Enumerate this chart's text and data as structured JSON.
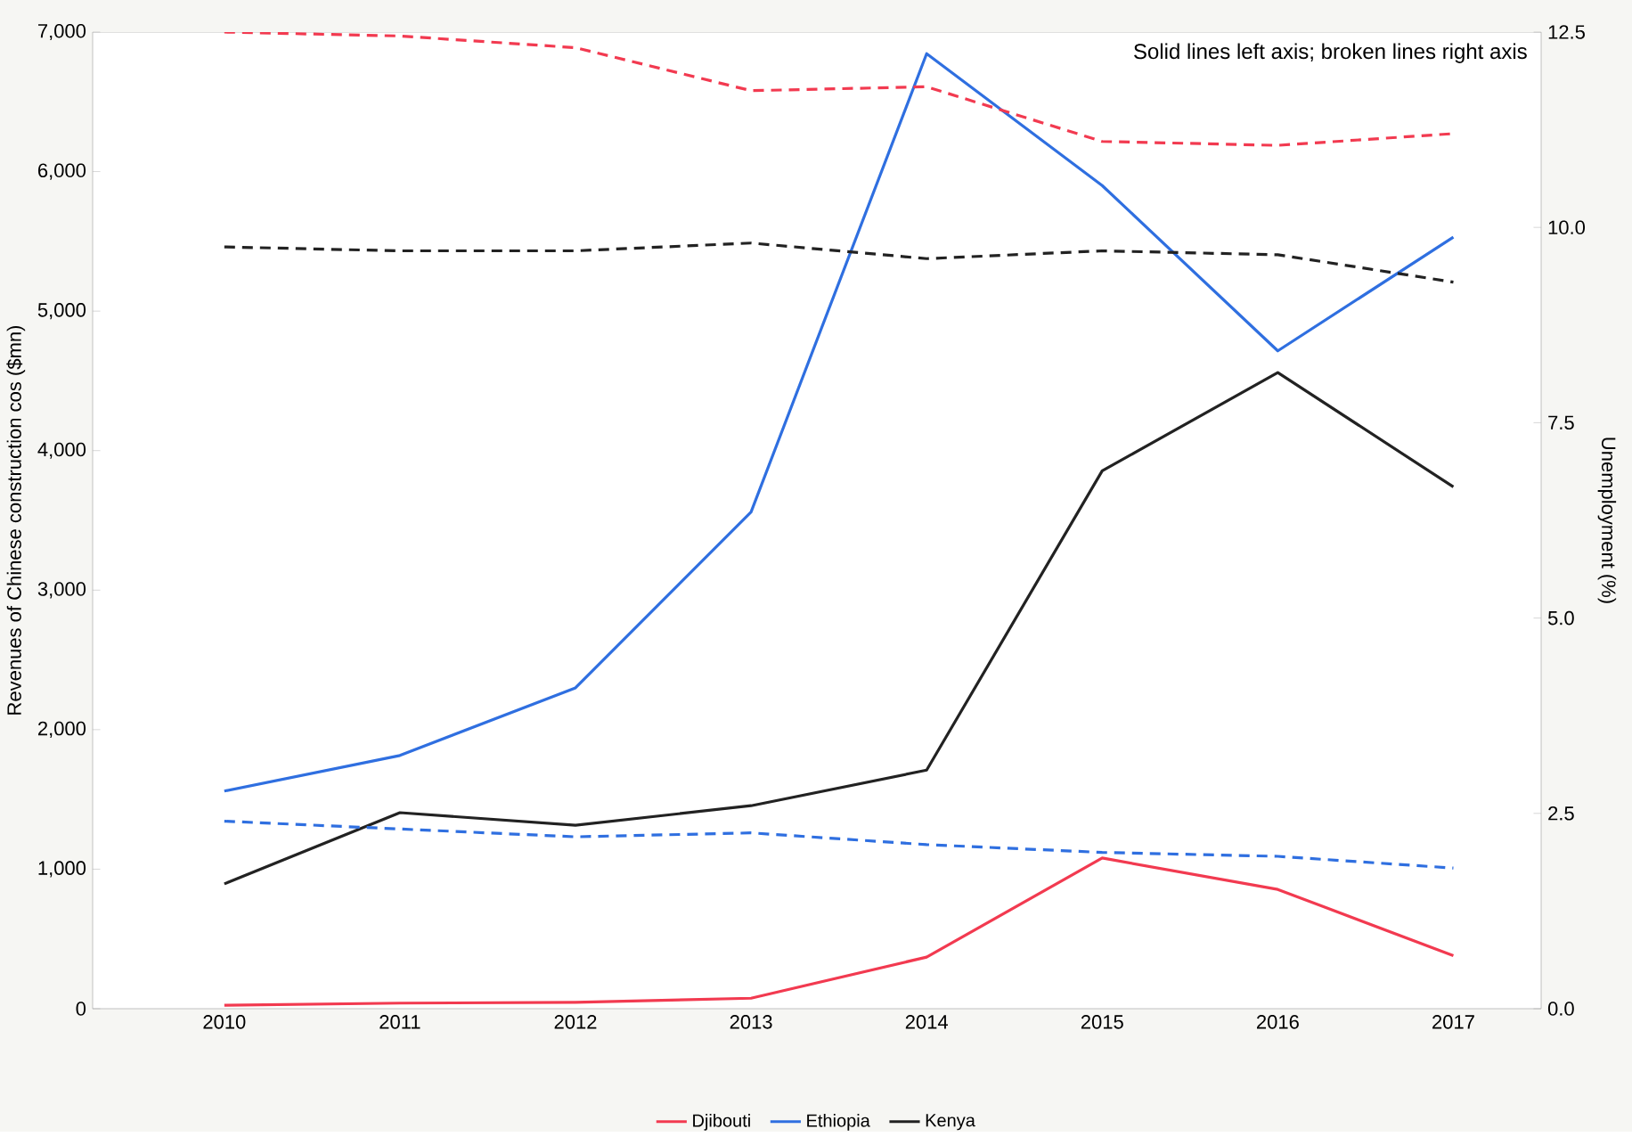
{
  "chart_data": {
    "type": "line",
    "categories": [
      "2010",
      "2011",
      "2012",
      "2013",
      "2014",
      "2015",
      "2016",
      "2017"
    ],
    "ylabel": "Revenues of Chinese construction cos  ($mn)",
    "y2label": "Unemployment (%)",
    "ylim": [
      0,
      7000
    ],
    "yticks": [
      {
        "value": 0,
        "label": "0"
      },
      {
        "value": 1000,
        "label": "1,000"
      },
      {
        "value": 2000,
        "label": "2,000"
      },
      {
        "value": 3000,
        "label": "3,000"
      },
      {
        "value": 4000,
        "label": "4,000"
      },
      {
        "value": 5000,
        "label": "5,000"
      },
      {
        "value": 6000,
        "label": "6,000"
      },
      {
        "value": 7000,
        "label": "7,000"
      }
    ],
    "y2lim": [
      0,
      12.5
    ],
    "y2ticks": [
      {
        "value": 0,
        "label": "0.0"
      },
      {
        "value": 2.5,
        "label": "2.5"
      },
      {
        "value": 5,
        "label": "5.0"
      },
      {
        "value": 7.5,
        "label": "7.5"
      },
      {
        "value": 10,
        "label": "10.0"
      },
      {
        "value": 12.5,
        "label": "12.5"
      }
    ],
    "legend": "bottom",
    "marker": "none",
    "annotations": [
      "Solid lines left axis; broken lines right axis"
    ],
    "series": [
      {
        "name": "Djibouti",
        "color": "#f23a50",
        "line_style": "solid",
        "values": [
          25,
          40,
          45,
          75,
          370,
          1080,
          855,
          380
        ]
      },
      {
        "name": "Ethiopia",
        "color": "#2f6fe0",
        "line_style": "solid",
        "values": [
          1560,
          1815,
          2300,
          3560,
          6845,
          5900,
          4715,
          5530
        ]
      },
      {
        "name": "Kenya",
        "color": "#222222",
        "line_style": "solid",
        "values": [
          895,
          1405,
          1315,
          1455,
          1710,
          3855,
          4560,
          3740
        ]
      },
      {
        "color": "#f23a50",
        "line_style": "dashed",
        "axis": "y2",
        "values": [
          12.5,
          12.45,
          12.3,
          11.75,
          11.8,
          11.1,
          11.05,
          11.2
        ]
      },
      {
        "color": "#2f6fe0",
        "line_style": "dashed",
        "axis": "y2",
        "values": [
          2.4,
          2.3,
          2.2,
          2.25,
          2.1,
          2.0,
          1.95,
          1.8
        ]
      },
      {
        "color": "#222222",
        "line_style": "dashed",
        "axis": "y2",
        "values": [
          9.75,
          9.7,
          9.7,
          9.8,
          9.6,
          9.7,
          9.65,
          9.3
        ]
      }
    ]
  }
}
